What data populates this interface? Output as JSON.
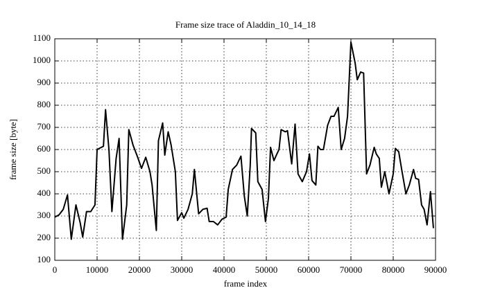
{
  "chart_data": {
    "type": "line",
    "title": "Frame size trace of Aladdin_10_14_18",
    "xlabel": "frame index",
    "ylabel": "frame size [byte]",
    "color": "#000000",
    "grid": true,
    "xlim": [
      0,
      90000
    ],
    "xticks": [
      0,
      10000,
      20000,
      30000,
      40000,
      50000,
      60000,
      70000,
      80000,
      90000
    ],
    "ylim": [
      100,
      1100
    ],
    "yticks": [
      100,
      200,
      300,
      400,
      500,
      600,
      700,
      800,
      900,
      1000,
      1100
    ],
    "x": [
      0,
      1000,
      2000,
      3000,
      3900,
      5000,
      6000,
      6600,
      7500,
      8500,
      9500,
      10000,
      11500,
      12000,
      12800,
      13500,
      14500,
      15200,
      16000,
      17000,
      17500,
      18500,
      19500,
      20500,
      21500,
      22500,
      23000,
      24000,
      24500,
      25500,
      26000,
      26800,
      27500,
      28500,
      29000,
      30000,
      30500,
      31500,
      32500,
      33000,
      34000,
      35000,
      36000,
      36500,
      37500,
      38500,
      39500,
      40500,
      41000,
      42000,
      43000,
      44000,
      44800,
      45500,
      46200,
      46500,
      47500,
      48000,
      49000,
      49800,
      50500,
      51000,
      51800,
      52500,
      53000,
      53500,
      54500,
      55000,
      56000,
      56800,
      57500,
      58500,
      59500,
      60200,
      60800,
      61700,
      62200,
      62800,
      63500,
      64500,
      65300,
      66000,
      67000,
      67700,
      68500,
      69200,
      70000,
      71000,
      71500,
      72300,
      73000,
      73700,
      74500,
      75500,
      76000,
      76700,
      77200,
      78000,
      79000,
      80000,
      80500,
      81300,
      82000,
      83000,
      83800,
      84800,
      85300,
      86000,
      86700,
      87300,
      88000,
      88800,
      89500
    ],
    "values": [
      295,
      305,
      330,
      395,
      195,
      350,
      270,
      205,
      320,
      320,
      350,
      600,
      615,
      780,
      600,
      320,
      560,
      650,
      195,
      350,
      690,
      620,
      570,
      515,
      565,
      500,
      440,
      235,
      640,
      720,
      575,
      680,
      620,
      500,
      280,
      315,
      290,
      330,
      400,
      510,
      310,
      330,
      335,
      275,
      275,
      260,
      285,
      295,
      420,
      510,
      530,
      570,
      390,
      300,
      530,
      695,
      675,
      455,
      420,
      275,
      380,
      610,
      550,
      580,
      600,
      690,
      680,
      685,
      535,
      715,
      490,
      455,
      500,
      580,
      460,
      440,
      615,
      600,
      600,
      710,
      750,
      750,
      790,
      600,
      650,
      750,
      1085,
      990,
      915,
      950,
      945,
      490,
      530,
      610,
      580,
      560,
      430,
      500,
      400,
      490,
      605,
      590,
      510,
      400,
      440,
      510,
      470,
      465,
      350,
      330,
      260,
      410,
      245
    ]
  }
}
